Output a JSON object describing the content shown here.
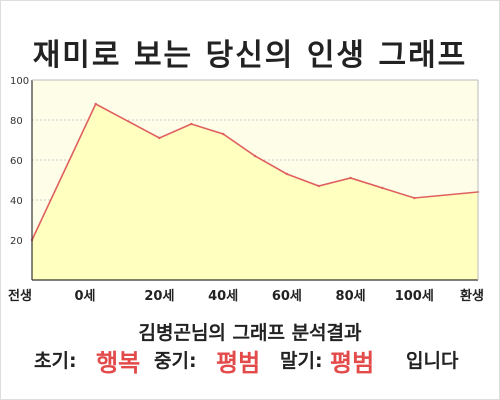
{
  "title": "재미로 보는 당신의 인생 그래프",
  "subtitle": "김병곤님의 그래프 분석결과",
  "result": {
    "early_label": "초기:",
    "early_value": "행복",
    "mid_label": "중기:",
    "mid_value": "평범",
    "late_label": "말기:",
    "late_value": "평범",
    "ending": "입니다"
  },
  "colors": {
    "line": "#e06060",
    "fill": "#ffffc0",
    "plot_bg": "#fdfde8",
    "accent": "#e34b4b"
  },
  "chart_data": {
    "type": "area",
    "title": "재미로 보는 당신의 인생 그래프",
    "x_tick_labels": [
      "전생",
      "0세",
      "20세",
      "40세",
      "60세",
      "80세",
      "100세",
      "환생"
    ],
    "y_ticks": [
      20,
      40,
      60,
      80,
      100
    ],
    "ylim": [
      0,
      100
    ],
    "grid": true,
    "series": [
      {
        "points": [
          {
            "x": "전생",
            "y": 20
          },
          {
            "x": "0세",
            "y": 88
          },
          {
            "x": "20세",
            "y": 71
          },
          {
            "x": "30세",
            "y": 78
          },
          {
            "x": "40세",
            "y": 73
          },
          {
            "x": "50세",
            "y": 62
          },
          {
            "x": "60세",
            "y": 53
          },
          {
            "x": "70세",
            "y": 47
          },
          {
            "x": "80세",
            "y": 51
          },
          {
            "x": "90세",
            "y": 46
          },
          {
            "x": "100세",
            "y": 41
          },
          {
            "x": "환생",
            "y": 44
          }
        ]
      }
    ]
  }
}
